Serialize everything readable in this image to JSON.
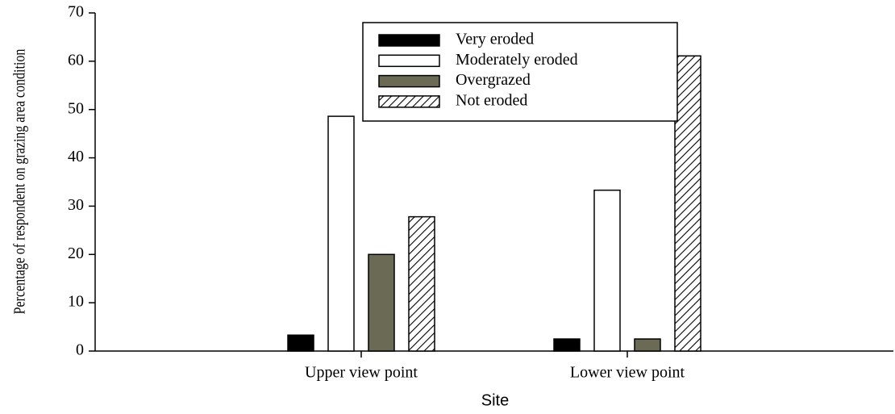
{
  "chart_data": {
    "type": "bar",
    "x_label": "Site",
    "y_label": "Percentage of respondent on grazing area condition",
    "categories": [
      "Upper view point",
      "Lower view point"
    ],
    "series": [
      {
        "name": "Very eroded",
        "color": "#000000",
        "values": [
          3.3,
          2.5
        ]
      },
      {
        "name": "Moderately eroded",
        "color": "#ffffff",
        "values": [
          48.6,
          33.3
        ]
      },
      {
        "name": "Overgrazed",
        "color": "#6b6b55",
        "values": [
          20,
          2.5
        ]
      },
      {
        "name": "Not eroded",
        "color": "hatch",
        "values": [
          27.8,
          61.1
        ]
      }
    ],
    "ylim": [
      0,
      70
    ],
    "yticks": [
      0,
      10,
      20,
      30,
      40,
      50,
      60,
      70
    ],
    "grid": false,
    "legend": "top"
  }
}
